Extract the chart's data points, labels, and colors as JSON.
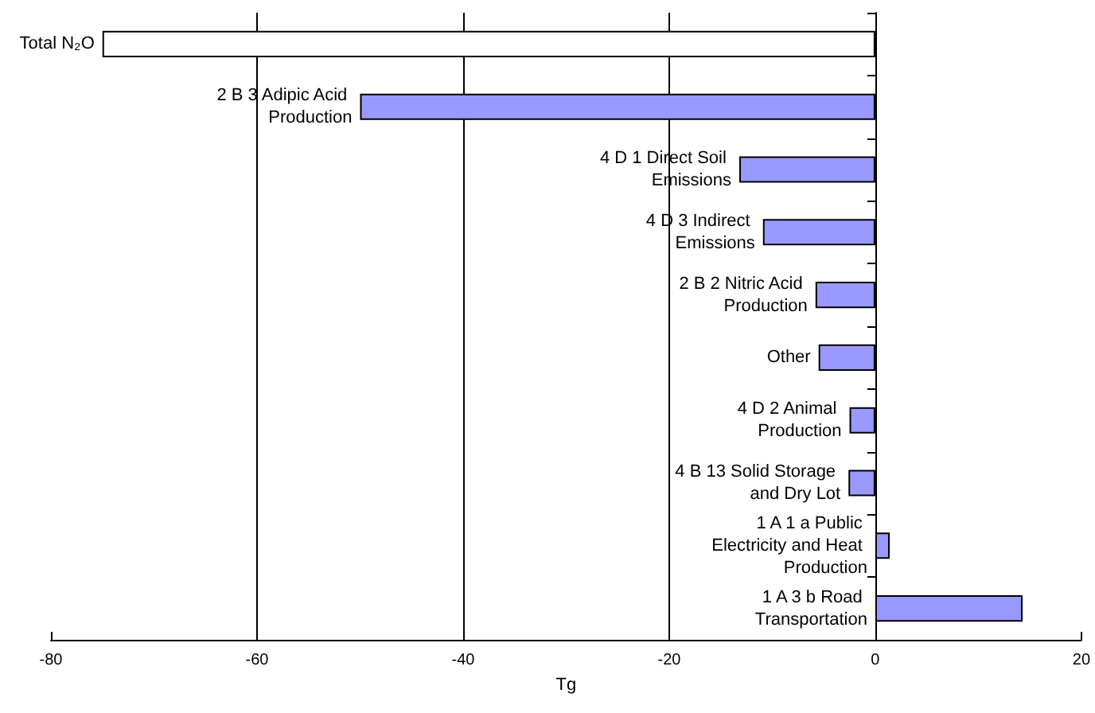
{
  "chart_data": {
    "type": "bar",
    "orientation": "horizontal",
    "xlabel": "Tg",
    "categories": [
      "Total N₂O",
      "2 B 3 Adipic Acid Production",
      "4 D 1 Direct Soil Emissions",
      "4 D 3 Indirect Emissions",
      "2 B 2 Nitric Acid Production",
      "Other",
      "4 D 2 Animal Production",
      "4 B 13 Solid Storage and Dry Lot",
      "1 A 1 a Public Electricity and Heat Production",
      "1 A 3 b Road Transportation"
    ],
    "values": [
      -75,
      -50,
      -13.2,
      -10.9,
      -5.8,
      -5.5,
      -2.5,
      -2.6,
      1.4,
      14.3
    ],
    "colors": [
      "#ffffff",
      "#9999ff",
      "#9999ff",
      "#9999ff",
      "#9999ff",
      "#9999ff",
      "#9999ff",
      "#9999ff",
      "#9999ff",
      "#9999ff"
    ],
    "xlim": [
      -80,
      20
    ],
    "xticks": [
      -80,
      -60,
      -40,
      -20,
      0,
      20
    ],
    "grid": "x"
  }
}
